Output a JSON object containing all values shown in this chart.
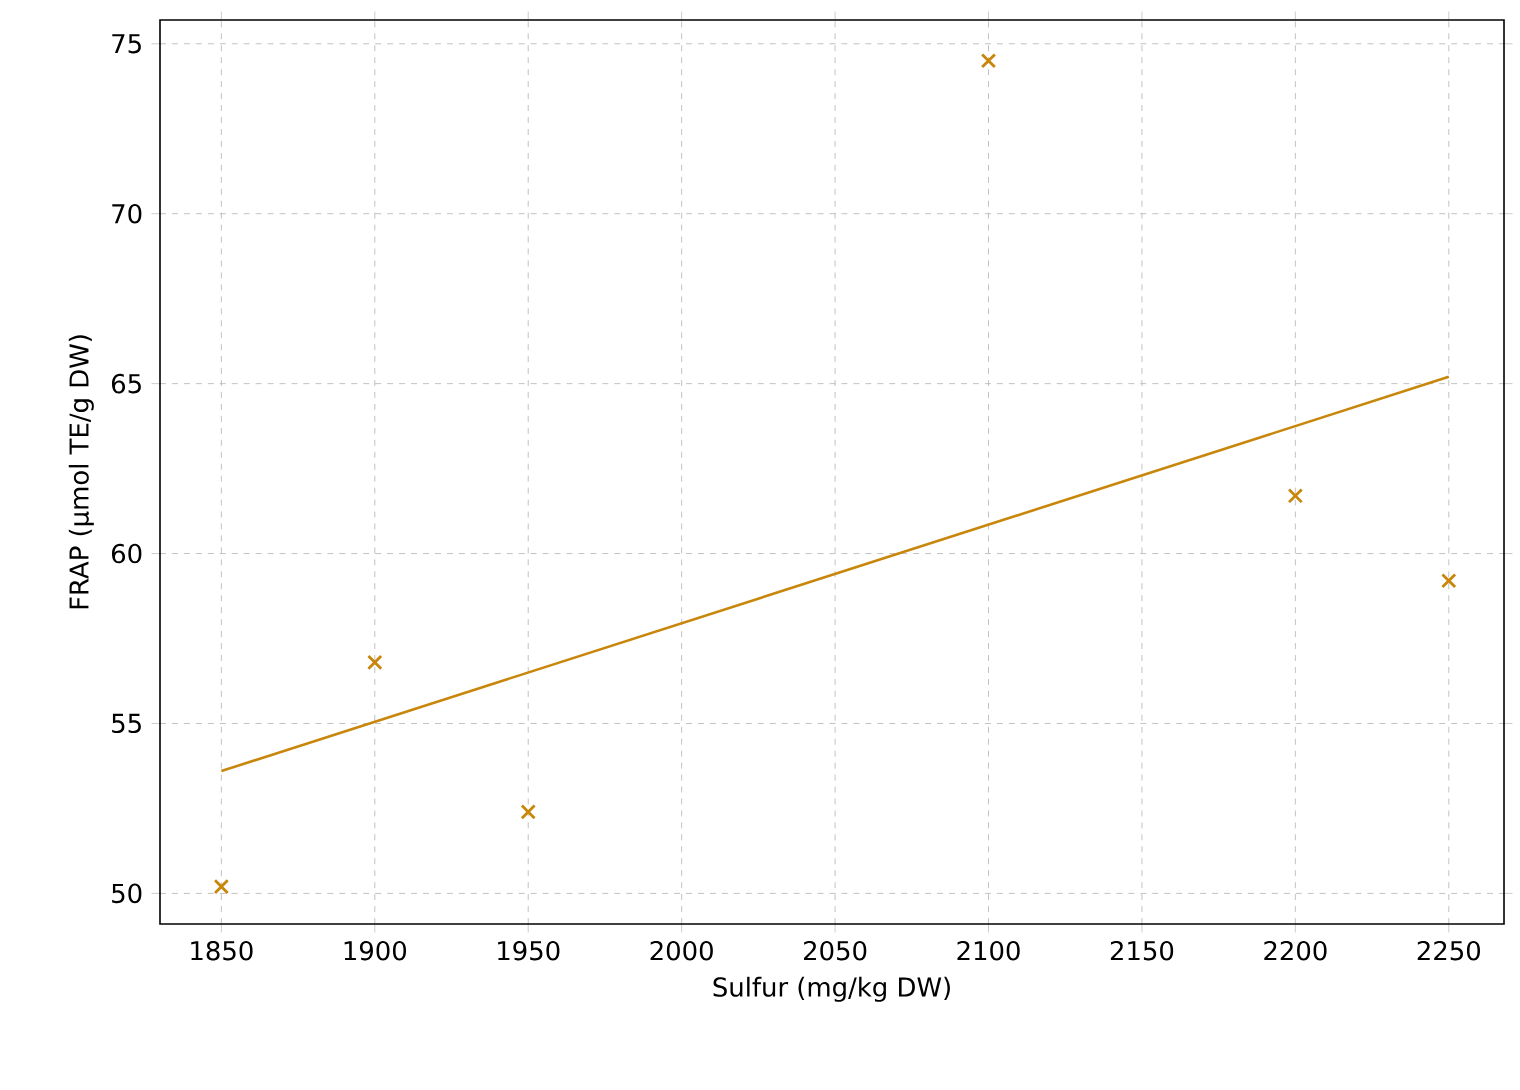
{
  "chart_data": {
    "type": "scatter",
    "xlabel": "Sulfur (mg/kg DW)",
    "ylabel": "FRAP (µmol TE/g DW)",
    "xlim": [
      1830,
      2268
    ],
    "ylim": [
      49.1,
      75.7
    ],
    "xticks": [
      1850,
      1900,
      1950,
      2000,
      2050,
      2100,
      2150,
      2200,
      2250
    ],
    "yticks": [
      50,
      55,
      60,
      65,
      70,
      75
    ],
    "grid": true,
    "series": [
      {
        "marker": "cross",
        "color": "#c8860a",
        "x": [
          1850,
          1900,
          1950,
          2100,
          2200,
          2250
        ],
        "values": [
          50.2,
          56.8,
          52.4,
          74.5,
          61.7,
          59.2
        ]
      },
      {
        "type": "line",
        "marker": "none",
        "line_style": "solid",
        "color": "#c8860a",
        "x": [
          1850,
          2250
        ],
        "values": [
          53.6,
          65.2
        ]
      }
    ]
  }
}
